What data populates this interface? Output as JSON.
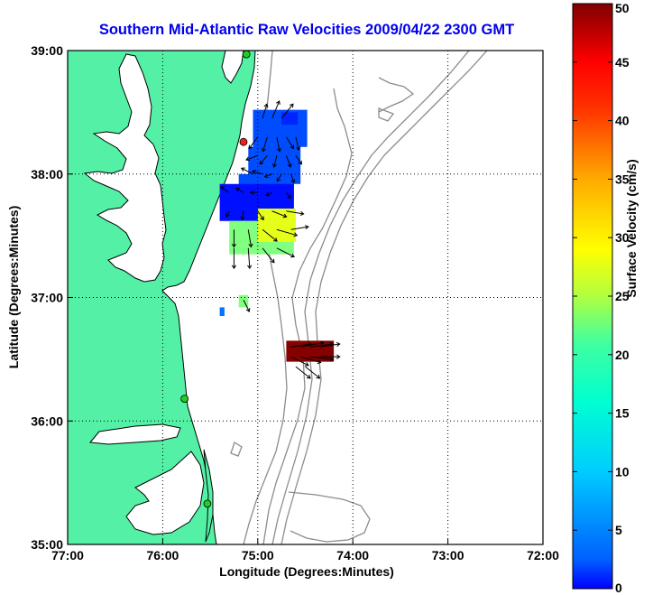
{
  "title": "Southern Mid-Atlantic Raw Velocities 2009/04/22 2300 GMT",
  "xlabel": "Longitude (Degrees:Minutes)",
  "ylabel": "Latitude (Degrees:Minutes)",
  "colorbar_label": "Surface Velocity (cm/s)",
  "x_ticks": [
    "77:00",
    "76:00",
    "75:00",
    "74:00",
    "73:00",
    "72:00"
  ],
  "y_ticks": [
    "39:00",
    "38:00",
    "37:00",
    "36:00",
    "35:00"
  ],
  "colorbar_ticks": [
    "0",
    "5",
    "10",
    "15",
    "20",
    "25",
    "30",
    "35",
    "40",
    "45",
    "50"
  ],
  "colors": {
    "land": "#54f0a6",
    "water": "#ffffff",
    "bathymetry": "#8c8c8c",
    "grid": "#000000",
    "station": "#22cc22",
    "station_alt": "#ee2222",
    "title": "#0000ee"
  },
  "chart_data": {
    "type": "map",
    "xlim": [
      -77,
      -72
    ],
    "ylim": [
      35,
      39
    ],
    "grid": true,
    "colorbar": {
      "min": 0,
      "max": 50,
      "colormap": "jet",
      "unit": "cm/s"
    },
    "stations": [
      {
        "lon": -75.12,
        "lat": 38.97,
        "color": "#22cc22"
      },
      {
        "lon": -75.15,
        "lat": 38.26,
        "color": "#ee2222"
      },
      {
        "lon": -75.77,
        "lat": 36.18,
        "color": "#22cc22"
      },
      {
        "lon": -75.53,
        "lat": 35.33,
        "color": "#22cc22"
      }
    ],
    "velocity_regions": [
      {
        "name": "north-field",
        "value": 10,
        "polygon": [
          [
            -75.05,
            38.52
          ],
          [
            -74.48,
            38.52
          ],
          [
            -74.48,
            38.22
          ],
          [
            -74.55,
            38.22
          ],
          [
            -74.55,
            37.92
          ],
          [
            -74.62,
            37.92
          ],
          [
            -74.62,
            37.8
          ],
          [
            -75.2,
            37.8
          ],
          [
            -75.2,
            38.0
          ],
          [
            -75.1,
            38.0
          ],
          [
            -75.1,
            38.22
          ],
          [
            -75.05,
            38.22
          ]
        ]
      },
      {
        "name": "mid-field",
        "value": 7,
        "polygon": [
          [
            -75.4,
            37.92
          ],
          [
            -74.62,
            37.92
          ],
          [
            -74.62,
            37.62
          ],
          [
            -75.4,
            37.62
          ]
        ]
      },
      {
        "name": "south-field",
        "value": 25,
        "polygon": [
          [
            -75.3,
            37.62
          ],
          [
            -74.62,
            37.62
          ],
          [
            -74.62,
            37.35
          ],
          [
            -75.3,
            37.35
          ]
        ]
      },
      {
        "name": "southeast-patch",
        "value": 30,
        "polygon": [
          [
            -75.0,
            37.72
          ],
          [
            -74.6,
            37.72
          ],
          [
            -74.6,
            37.45
          ],
          [
            -75.0,
            37.45
          ]
        ]
      },
      {
        "name": "ne-patch",
        "value": 8,
        "polygon": [
          [
            -74.75,
            38.5
          ],
          [
            -74.58,
            38.5
          ],
          [
            -74.58,
            38.4
          ],
          [
            -74.75,
            38.4
          ]
        ]
      },
      {
        "name": "isolated-1",
        "value": 25,
        "polygon": [
          [
            -75.2,
            37.02
          ],
          [
            -75.1,
            37.02
          ],
          [
            -75.1,
            36.92
          ],
          [
            -75.2,
            36.92
          ]
        ]
      },
      {
        "name": "isolated-2",
        "value": 12,
        "polygon": [
          [
            -75.4,
            36.92
          ],
          [
            -75.35,
            36.92
          ],
          [
            -75.35,
            36.85
          ],
          [
            -75.4,
            36.85
          ]
        ]
      },
      {
        "name": "south-hot",
        "value": 50,
        "polygon": [
          [
            -74.7,
            36.65
          ],
          [
            -74.2,
            36.65
          ],
          [
            -74.2,
            36.48
          ],
          [
            -74.7,
            36.48
          ]
        ]
      }
    ],
    "vectors": [
      {
        "lon": -74.95,
        "lat": 38.45,
        "u": 3,
        "v": 10
      },
      {
        "lon": -74.85,
        "lat": 38.45,
        "u": 5,
        "v": 12
      },
      {
        "lon": -74.75,
        "lat": 38.45,
        "u": 8,
        "v": 10
      },
      {
        "lon": -75.0,
        "lat": 38.3,
        "u": -6,
        "v": -8
      },
      {
        "lon": -74.9,
        "lat": 38.3,
        "u": -3,
        "v": -10
      },
      {
        "lon": -74.8,
        "lat": 38.3,
        "u": 2,
        "v": -10
      },
      {
        "lon": -74.7,
        "lat": 38.3,
        "u": 5,
        "v": -8
      },
      {
        "lon": -74.6,
        "lat": 38.3,
        "u": 2,
        "v": -9
      },
      {
        "lon": -75.0,
        "lat": 38.15,
        "u": -8,
        "v": -3
      },
      {
        "lon": -74.9,
        "lat": 38.15,
        "u": -5,
        "v": -6
      },
      {
        "lon": -74.8,
        "lat": 38.15,
        "u": -2,
        "v": -8
      },
      {
        "lon": -74.7,
        "lat": 38.15,
        "u": 3,
        "v": -8
      },
      {
        "lon": -74.6,
        "lat": 38.15,
        "u": 4,
        "v": -6
      },
      {
        "lon": -75.05,
        "lat": 38.0,
        "u": -8,
        "v": 4
      },
      {
        "lon": -74.95,
        "lat": 38.0,
        "u": -7,
        "v": 2
      },
      {
        "lon": -74.85,
        "lat": 38.0,
        "u": -5,
        "v": -2
      },
      {
        "lon": -74.75,
        "lat": 38.0,
        "u": -3,
        "v": -5
      },
      {
        "lon": -74.65,
        "lat": 38.0,
        "u": 2,
        "v": -6
      },
      {
        "lon": -75.3,
        "lat": 37.85,
        "u": -6,
        "v": 4
      },
      {
        "lon": -75.15,
        "lat": 37.85,
        "u": -5,
        "v": 3
      },
      {
        "lon": -75.0,
        "lat": 37.85,
        "u": -5,
        "v": 0
      },
      {
        "lon": -74.85,
        "lat": 37.85,
        "u": -4,
        "v": -2
      },
      {
        "lon": -74.7,
        "lat": 37.85,
        "u": 3,
        "v": -4
      },
      {
        "lon": -75.3,
        "lat": 37.7,
        "u": -2,
        "v": -4
      },
      {
        "lon": -75.15,
        "lat": 37.7,
        "u": -1,
        "v": -6
      },
      {
        "lon": -75.0,
        "lat": 37.7,
        "u": 4,
        "v": -6
      },
      {
        "lon": -74.85,
        "lat": 37.7,
        "u": 10,
        "v": -4
      },
      {
        "lon": -74.7,
        "lat": 37.7,
        "u": 12,
        "v": -2
      },
      {
        "lon": -75.25,
        "lat": 37.55,
        "u": 0,
        "v": -12
      },
      {
        "lon": -75.1,
        "lat": 37.55,
        "u": 2,
        "v": -12
      },
      {
        "lon": -74.95,
        "lat": 37.55,
        "u": 10,
        "v": -8
      },
      {
        "lon": -74.8,
        "lat": 37.55,
        "u": 14,
        "v": -4
      },
      {
        "lon": -74.65,
        "lat": 37.55,
        "u": 12,
        "v": 2
      },
      {
        "lon": -75.25,
        "lat": 37.4,
        "u": 0,
        "v": -14
      },
      {
        "lon": -75.1,
        "lat": 37.4,
        "u": 1,
        "v": -14
      },
      {
        "lon": -74.95,
        "lat": 37.4,
        "u": 8,
        "v": -10
      },
      {
        "lon": -74.8,
        "lat": 37.4,
        "u": 12,
        "v": -6
      },
      {
        "lon": -75.15,
        "lat": 36.98,
        "u": 4,
        "v": -8
      },
      {
        "lon": -74.65,
        "lat": 36.6,
        "u": 14,
        "v": 2
      },
      {
        "lon": -74.55,
        "lat": 36.6,
        "u": 16,
        "v": 3
      },
      {
        "lon": -74.45,
        "lat": 36.6,
        "u": 16,
        "v": 2
      },
      {
        "lon": -74.35,
        "lat": 36.6,
        "u": 14,
        "v": 2
      },
      {
        "lon": -74.65,
        "lat": 36.52,
        "u": 12,
        "v": -6
      },
      {
        "lon": -74.55,
        "lat": 36.52,
        "u": 14,
        "v": -4
      },
      {
        "lon": -74.45,
        "lat": 36.52,
        "u": 16,
        "v": -2
      },
      {
        "lon": -74.35,
        "lat": 36.52,
        "u": 14,
        "v": 0
      },
      {
        "lon": -74.6,
        "lat": 36.44,
        "u": 10,
        "v": -8
      },
      {
        "lon": -74.5,
        "lat": 36.44,
        "u": 10,
        "v": -8
      }
    ]
  }
}
